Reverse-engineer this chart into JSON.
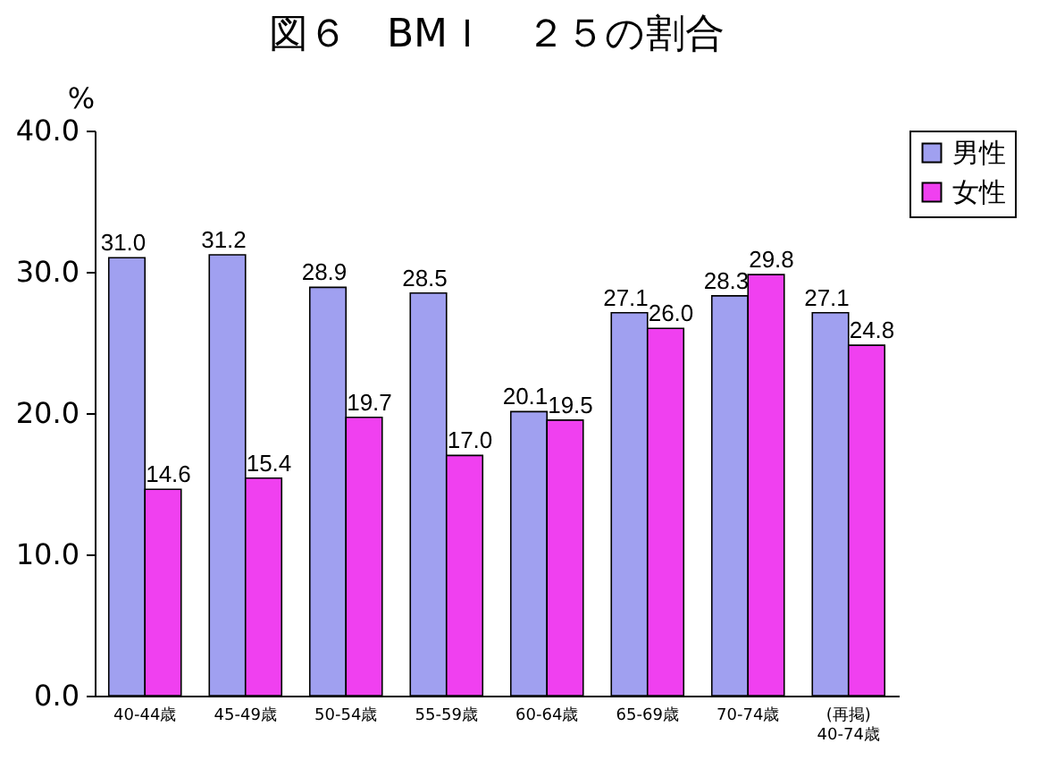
{
  "chart_data": {
    "type": "bar",
    "title": "図６　BMＩ　２５の割合",
    "ylabel": "%",
    "categories": [
      "40-44歳",
      "45-49歳",
      "50-54歳",
      "55-59歳",
      "60-64歳",
      "65-69歳",
      "70-74歳",
      "(再掲)\n40-74歳"
    ],
    "series": [
      {
        "name": "男性",
        "color": "#a0a0f0",
        "values": [
          31.0,
          31.2,
          28.9,
          28.5,
          20.1,
          27.1,
          28.3,
          27.1
        ],
        "value_labels": [
          "31.0",
          "31.2",
          "28.9",
          "28.5",
          "20.1",
          "27.1",
          "28.3",
          "27.1"
        ]
      },
      {
        "name": "女性",
        "color": "#f040f0",
        "values": [
          14.6,
          15.4,
          19.7,
          17.0,
          19.5,
          26.0,
          29.8,
          24.8
        ],
        "value_labels": [
          "14.6",
          "15.4",
          "19.7",
          "17.0",
          "19.5",
          "26.0",
          "29.8",
          "24.8"
        ]
      }
    ],
    "ylim": [
      0,
      40
    ],
    "yticks": [
      {
        "value": 0,
        "label": "0.0"
      },
      {
        "value": 10,
        "label": "10.0"
      },
      {
        "value": 20,
        "label": "20.0"
      },
      {
        "value": 30,
        "label": "30.0"
      },
      {
        "value": 40,
        "label": "40.0"
      }
    ],
    "legend": "right"
  }
}
